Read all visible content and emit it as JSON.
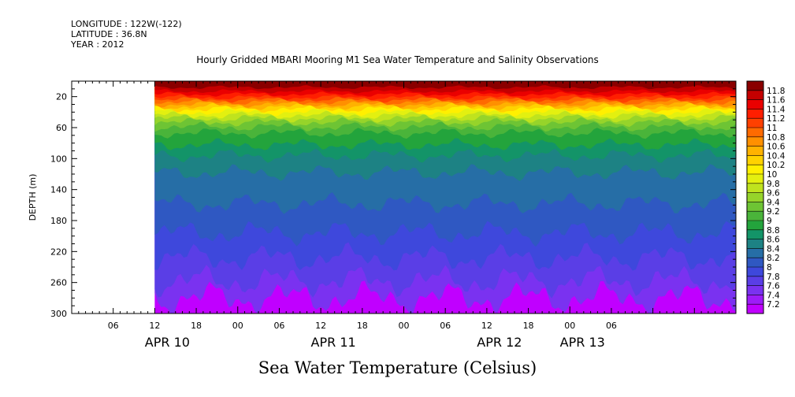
{
  "header": {
    "longitude": "LONGITUDE : 122W(-122)",
    "latitude": "LATITUDE : 36.8N",
    "year": "YEAR : 2012"
  },
  "chart_data": {
    "type": "heatmap",
    "title": "Hourly Gridded MBARI Mooring M1 Sea Water Temperature and Salinity Observations",
    "bottom_title": "Sea Water Temperature (Celsius)",
    "ylabel": "DEPTH (m)",
    "y_reversed": true,
    "ylim": [
      300,
      0
    ],
    "y_ticks": [
      20,
      60,
      100,
      140,
      180,
      220,
      260,
      300
    ],
    "x_time_range_hours": [
      0,
      96
    ],
    "data_start_hour": 12,
    "x_tick_labels": [
      {
        "h": 6,
        "label": "06"
      },
      {
        "h": 12,
        "label": "12"
      },
      {
        "h": 18,
        "label": "18"
      },
      {
        "h": 24,
        "label": "00"
      },
      {
        "h": 30,
        "label": "06"
      },
      {
        "h": 36,
        "label": "12"
      },
      {
        "h": 42,
        "label": "18"
      },
      {
        "h": 48,
        "label": "00"
      },
      {
        "h": 54,
        "label": "06"
      },
      {
        "h": 60,
        "label": "12"
      },
      {
        "h": 66,
        "label": "18"
      },
      {
        "h": 72,
        "label": "00"
      },
      {
        "h": 78,
        "label": "06"
      }
    ],
    "date_labels": [
      {
        "h": 12,
        "label": "APR 10"
      },
      {
        "h": 36,
        "label": "APR 11"
      },
      {
        "h": 60,
        "label": "APR 12"
      },
      {
        "h": 72,
        "label": "APR 13"
      }
    ],
    "colorbar": {
      "levels": [
        7.2,
        7.4,
        7.6,
        7.8,
        8,
        8.2,
        8.4,
        8.6,
        8.8,
        9,
        9.2,
        9.4,
        9.6,
        9.8,
        10,
        10.2,
        10.4,
        10.6,
        10.8,
        11,
        11.2,
        11.4,
        11.6,
        11.8
      ],
      "labels": [
        "7.2",
        "7.4",
        "7.6",
        "7.8",
        "8",
        "8.2",
        "8.4",
        "8.6",
        "8.8",
        "9",
        "9.2",
        "9.4",
        "9.6",
        "9.8",
        "10",
        "10.2",
        "10.4",
        "10.6",
        "10.8",
        "11",
        "11.2",
        "11.4",
        "11.6",
        "11.8"
      ],
      "colors": [
        "#c000ff",
        "#9d1cf8",
        "#7a32f0",
        "#5a3ee6",
        "#3e48dc",
        "#2f58c2",
        "#266ea6",
        "#1d8284",
        "#139468",
        "#23a43c",
        "#4ab43a",
        "#6ec434",
        "#96d42a",
        "#bfe31e",
        "#e3f010",
        "#fff000",
        "#ffd200",
        "#ffb200",
        "#ff9000",
        "#ff6a00",
        "#ff4000",
        "#ff1e00",
        "#ea0000",
        "#c40000",
        "#8a0000"
      ]
    },
    "contour_depths": [
      {
        "level": 11.8,
        "base": 8
      },
      {
        "level": 11.6,
        "base": 13
      },
      {
        "level": 11.4,
        "base": 17
      },
      {
        "level": 11.2,
        "base": 21
      },
      {
        "level": 11,
        "base": 24
      },
      {
        "level": 10.8,
        "base": 27
      },
      {
        "level": 10.6,
        "base": 30
      },
      {
        "level": 10.4,
        "base": 33
      },
      {
        "level": 10.2,
        "base": 36
      },
      {
        "level": 10,
        "base": 40
      },
      {
        "level": 9.8,
        "base": 44
      },
      {
        "level": 9.6,
        "base": 48
      },
      {
        "level": 9.4,
        "base": 53
      },
      {
        "level": 9.2,
        "base": 59
      },
      {
        "level": 9,
        "base": 67
      },
      {
        "level": 8.8,
        "base": 82
      },
      {
        "level": 8.6,
        "base": 96
      },
      {
        "level": 8.4,
        "base": 118
      },
      {
        "level": 8.2,
        "base": 158
      },
      {
        "level": 8,
        "base": 196
      },
      {
        "level": 7.8,
        "base": 228
      },
      {
        "level": 7.6,
        "base": 258
      },
      {
        "level": 7.4,
        "base": 280
      }
    ]
  }
}
